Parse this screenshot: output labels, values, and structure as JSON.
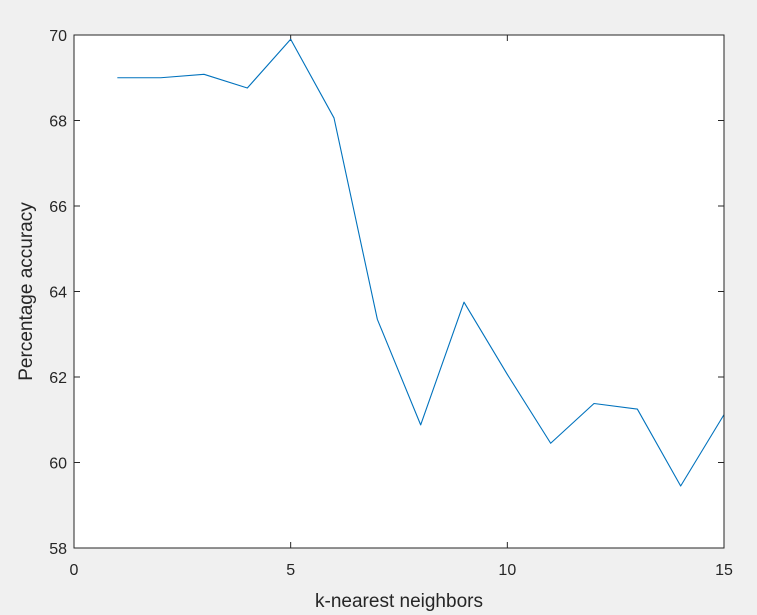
{
  "chart_data": {
    "type": "line",
    "title": "",
    "xlabel": "k-nearest neighbors",
    "ylabel": "Percentage accuracy",
    "xlim": [
      0,
      15
    ],
    "ylim": [
      58,
      70
    ],
    "xticks": [
      0,
      5,
      10,
      15
    ],
    "yticks": [
      58,
      60,
      62,
      64,
      66,
      68,
      70
    ],
    "grid": false,
    "legend": "none",
    "line_color": "#0072bd",
    "axes_color": "#262626",
    "background_color": "#f0f0f0",
    "axes_background_color": "#ffffff",
    "series": [
      {
        "x": [
          1,
          2,
          3,
          4,
          5,
          6,
          7,
          8,
          9,
          10,
          11,
          12,
          13,
          14,
          15
        ],
        "y": [
          69.0,
          69.0,
          69.08,
          68.76,
          69.9,
          68.06,
          63.35,
          60.88,
          63.75,
          62.06,
          60.45,
          61.38,
          61.25,
          59.45,
          61.12
        ]
      }
    ]
  }
}
